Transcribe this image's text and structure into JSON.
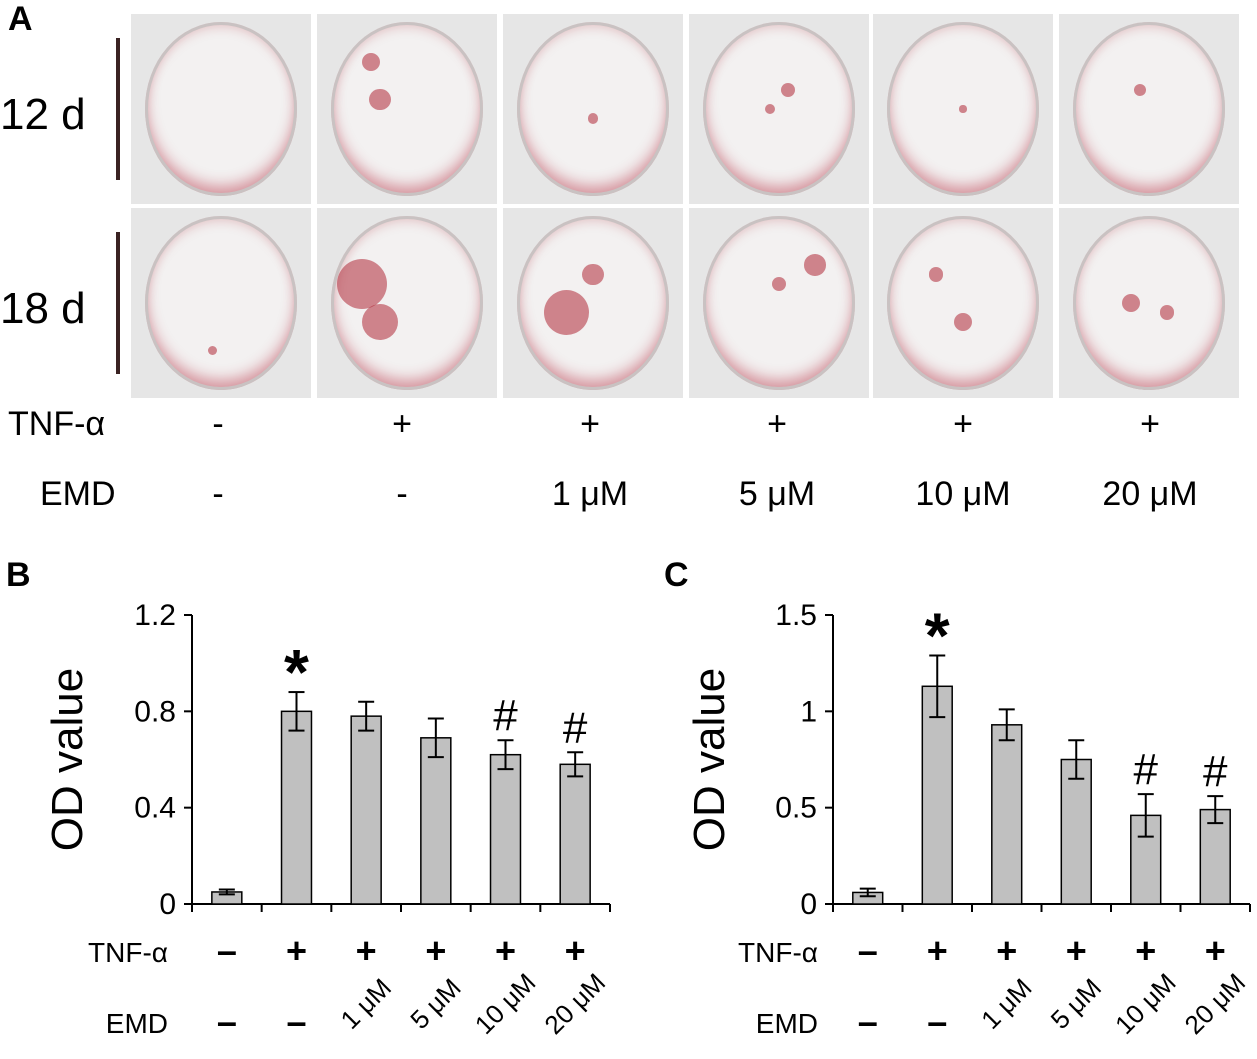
{
  "panel_a": {
    "letter": "A",
    "rows": [
      {
        "label": "12 d"
      },
      {
        "label": "18 d"
      }
    ],
    "tnf_label": "TNF-α",
    "emd_label": "EMD",
    "tnf_values": [
      "-",
      "+",
      "+",
      "+",
      "+",
      "+"
    ],
    "emd_values": [
      "-",
      "-",
      "1 μM",
      "5 μM",
      "10 μM",
      "20 μM"
    ],
    "well_color": "#b52d3d"
  },
  "chart_data": [
    {
      "panel": "B",
      "type": "bar",
      "ylabel": "OD value",
      "ylim": [
        0,
        1.2
      ],
      "yticks": [
        "0",
        "0.4",
        "0.8",
        "1.2"
      ],
      "categories": [
        "1",
        "2",
        "3",
        "4",
        "5",
        "6"
      ],
      "values": [
        0.05,
        0.8,
        0.78,
        0.69,
        0.62,
        0.58
      ],
      "errors": [
        0.01,
        0.08,
        0.06,
        0.08,
        0.06,
        0.05
      ],
      "annotations": [
        "",
        "*",
        "",
        "",
        "#",
        "#"
      ],
      "tnf_label": "TNF-α",
      "emd_label": "EMD",
      "tnf_values": [
        "–",
        "+",
        "+",
        "+",
        "+",
        "+"
      ],
      "emd_values": [
        "–",
        "–",
        "1 μM",
        "5 μM",
        "10 μM",
        "20 μM"
      ],
      "bar_color": "#c0c0c0"
    },
    {
      "panel": "C",
      "type": "bar",
      "ylabel": "OD value",
      "ylim": [
        0,
        1.5
      ],
      "yticks": [
        "0",
        "0.5",
        "1",
        "1.5"
      ],
      "categories": [
        "1",
        "2",
        "3",
        "4",
        "5",
        "6"
      ],
      "values": [
        0.06,
        1.13,
        0.93,
        0.75,
        0.46,
        0.49
      ],
      "errors": [
        0.02,
        0.16,
        0.08,
        0.1,
        0.11,
        0.07
      ],
      "annotations": [
        "",
        "*",
        "",
        "",
        "#",
        "#"
      ],
      "tnf_label": "TNF-α",
      "emd_label": "EMD",
      "tnf_values": [
        "–",
        "+",
        "+",
        "+",
        "+",
        "+"
      ],
      "emd_values": [
        "–",
        "–",
        "1 μM",
        "5 μM",
        "10 μM",
        "20 μM"
      ],
      "bar_color": "#c0c0c0"
    }
  ]
}
